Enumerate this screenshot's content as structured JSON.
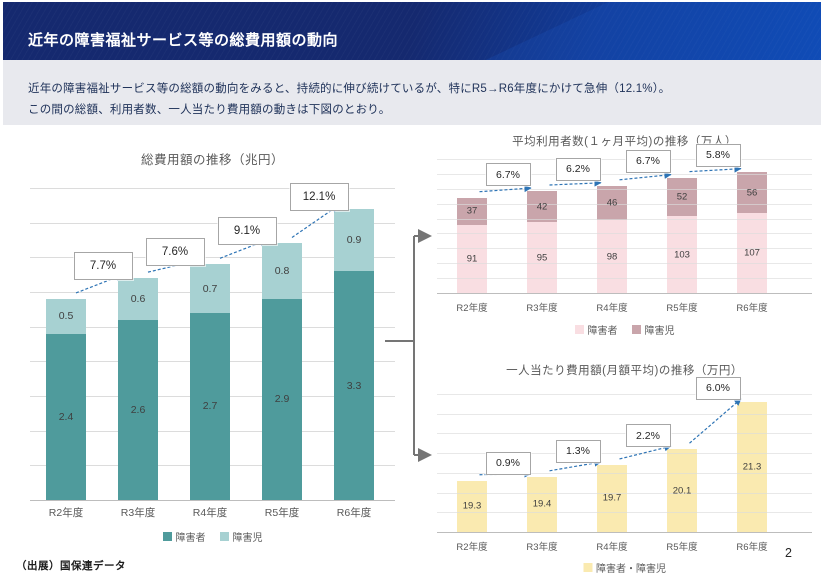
{
  "header": {
    "title": "近年の障害福祉サービス等の総費用額の動向"
  },
  "description": {
    "line1": "近年の障害福祉サービス等の総額の動向をみると、持続的に伸び続けているが、特にR5→R6年度にかけて急伸（12.1%）。",
    "line2": "この間の総額、利用者数、一人当たり費用額の動きは下図のとおり。"
  },
  "footer": {
    "source": "（出展）国保連データ",
    "page_number": "2"
  },
  "colors": {
    "header_navy": "#15296f",
    "header_blue": "#0d47b0",
    "band_bg": "#e8e9ee",
    "text_navy": "#20335a",
    "title_gray": "#595959",
    "value_gray": "#3f3f3f",
    "gridline": "#dcdcdc",
    "axis_line": "#bdbdbd",
    "arrow_blue": "#2e74b5",
    "connector_gray": "#757575",
    "box_border": "#a6a6a6",
    "teal_dark": "#4f9b9c",
    "teal_light": "#a7d1d2",
    "pink_light": "#f9dee2",
    "pink_dark": "#c9a5ab",
    "yellow": "#faeab0"
  },
  "chart_data": [
    {
      "id": "total-cost-chart",
      "type": "bar",
      "stacked": true,
      "title": "総費用額の推移（兆円）",
      "categories": [
        "R2年度",
        "R3年度",
        "R4年度",
        "R5年度",
        "R6年度"
      ],
      "series": [
        {
          "name": "障害者",
          "color_key": "teal_dark",
          "values": [
            2.4,
            2.6,
            2.7,
            2.9,
            3.3
          ]
        },
        {
          "name": "障害児",
          "color_key": "teal_light",
          "values": [
            0.5,
            0.6,
            0.7,
            0.8,
            0.9
          ]
        }
      ],
      "growth_labels": [
        "7.7%",
        "7.6%",
        "9.1%",
        "12.1%"
      ],
      "ylim": [
        0,
        4.5
      ],
      "grid_step": 0.5,
      "label_decimals": 1,
      "grid": true,
      "legend_position": "bottom"
    },
    {
      "id": "avg-users-chart",
      "type": "bar",
      "stacked": true,
      "title": "平均利用者数(１ヶ月平均)の推移（万人）",
      "categories": [
        "R2年度",
        "R3年度",
        "R4年度",
        "R5年度",
        "R6年度"
      ],
      "series": [
        {
          "name": "障害者",
          "color_key": "pink_light",
          "values": [
            91,
            95,
            98,
            103,
            107
          ]
        },
        {
          "name": "障害児",
          "color_key": "pink_dark",
          "values": [
            37,
            42,
            46,
            52,
            56
          ]
        }
      ],
      "growth_labels": [
        "6.7%",
        "6.2%",
        "6.7%",
        "5.8%"
      ],
      "ylim": [
        0,
        180
      ],
      "grid_step": 20,
      "label_decimals": 0,
      "grid": true,
      "legend_position": "bottom"
    },
    {
      "id": "cost-per-person-chart",
      "type": "bar",
      "stacked": false,
      "title": "一人当たり費用額(月額平均)の推移（万円）",
      "categories": [
        "R2年度",
        "R3年度",
        "R4年度",
        "R5年度",
        "R6年度"
      ],
      "series": [
        {
          "name": "障害者・障害児",
          "color_key": "yellow",
          "values": [
            19.3,
            19.4,
            19.7,
            20.1,
            21.3
          ]
        }
      ],
      "growth_labels": [
        "0.9%",
        "1.3%",
        "2.2%",
        "6.0%"
      ],
      "ylim": [
        18,
        21.5
      ],
      "grid_step": 0.5,
      "label_decimals": 1,
      "grid": true,
      "legend_position": "bottom"
    }
  ]
}
